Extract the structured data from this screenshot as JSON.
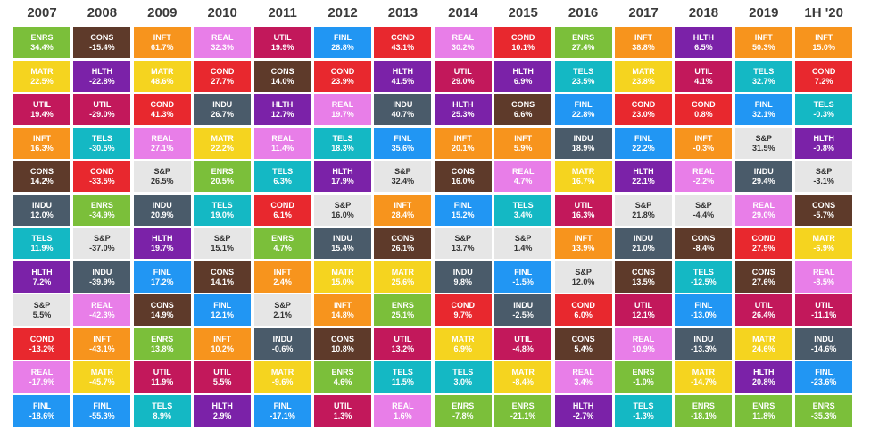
{
  "chart_data": {
    "type": "table",
    "years": [
      "2007",
      "2008",
      "2009",
      "2010",
      "2011",
      "2012",
      "2013",
      "2014",
      "2015",
      "2016",
      "2017",
      "2018",
      "2019",
      "1H '20"
    ],
    "sector_colors": {
      "ENRS": "#7bbf3a",
      "CONS": "#5e3a2a",
      "INFT": "#f7941d",
      "REAL": "#e87ee8",
      "UTIL": "#c2185b",
      "FINL": "#2196f3",
      "COND": "#e8282e",
      "MATR": "#f5d41f",
      "HLTH": "#7b22a8",
      "TELS": "#14b8c4",
      "INDU": "#4a5b6a",
      "S&P": "#e6e6e6"
    },
    "text_colors": {
      "ENRS": "#ffffff",
      "CONS": "#ffffff",
      "INFT": "#ffffff",
      "REAL": "#ffffff",
      "UTIL": "#ffffff",
      "FINL": "#ffffff",
      "COND": "#ffffff",
      "MATR": "#ffffff",
      "HLTH": "#ffffff",
      "TELS": "#ffffff",
      "INDU": "#ffffff",
      "S&P": "#333333"
    },
    "columns": [
      [
        [
          "ENRS",
          "34.4%"
        ],
        [
          "MATR",
          "22.5%"
        ],
        [
          "UTIL",
          "19.4%"
        ],
        [
          "INFT",
          "16.3%"
        ],
        [
          "CONS",
          "14.2%"
        ],
        [
          "INDU",
          "12.0%"
        ],
        [
          "TELS",
          "11.9%"
        ],
        [
          "HLTH",
          "7.2%"
        ],
        [
          "S&P",
          "5.5%"
        ],
        [
          "COND",
          "-13.2%"
        ],
        [
          "REAL",
          "-17.9%"
        ],
        [
          "FINL",
          "-18.6%"
        ]
      ],
      [
        [
          "CONS",
          "-15.4%"
        ],
        [
          "HLTH",
          "-22.8%"
        ],
        [
          "UTIL",
          "-29.0%"
        ],
        [
          "TELS",
          "-30.5%"
        ],
        [
          "COND",
          "-33.5%"
        ],
        [
          "ENRS",
          "-34.9%"
        ],
        [
          "S&P",
          "-37.0%"
        ],
        [
          "INDU",
          "-39.9%"
        ],
        [
          "REAL",
          "-42.3%"
        ],
        [
          "INFT",
          "-43.1%"
        ],
        [
          "MATR",
          "-45.7%"
        ],
        [
          "FINL",
          "-55.3%"
        ]
      ],
      [
        [
          "INFT",
          "61.7%"
        ],
        [
          "MATR",
          "48.6%"
        ],
        [
          "COND",
          "41.3%"
        ],
        [
          "REAL",
          "27.1%"
        ],
        [
          "S&P",
          "26.5%"
        ],
        [
          "INDU",
          "20.9%"
        ],
        [
          "HLTH",
          "19.7%"
        ],
        [
          "FINL",
          "17.2%"
        ],
        [
          "CONS",
          "14.9%"
        ],
        [
          "ENRS",
          "13.8%"
        ],
        [
          "UTIL",
          "11.9%"
        ],
        [
          "TELS",
          "8.9%"
        ]
      ],
      [
        [
          "REAL",
          "32.3%"
        ],
        [
          "COND",
          "27.7%"
        ],
        [
          "INDU",
          "26.7%"
        ],
        [
          "MATR",
          "22.2%"
        ],
        [
          "ENRS",
          "20.5%"
        ],
        [
          "TELS",
          "19.0%"
        ],
        [
          "S&P",
          "15.1%"
        ],
        [
          "CONS",
          "14.1%"
        ],
        [
          "FINL",
          "12.1%"
        ],
        [
          "INFT",
          "10.2%"
        ],
        [
          "UTIL",
          "5.5%"
        ],
        [
          "HLTH",
          "2.9%"
        ]
      ],
      [
        [
          "UTIL",
          "19.9%"
        ],
        [
          "CONS",
          "14.0%"
        ],
        [
          "HLTH",
          "12.7%"
        ],
        [
          "REAL",
          "11.4%"
        ],
        [
          "TELS",
          "6.3%"
        ],
        [
          "COND",
          "6.1%"
        ],
        [
          "ENRS",
          "4.7%"
        ],
        [
          "INFT",
          "2.4%"
        ],
        [
          "S&P",
          "2.1%"
        ],
        [
          "INDU",
          "-0.6%"
        ],
        [
          "MATR",
          "-9.6%"
        ],
        [
          "FINL",
          "-17.1%"
        ]
      ],
      [
        [
          "FINL",
          "28.8%"
        ],
        [
          "COND",
          "23.9%"
        ],
        [
          "REAL",
          "19.7%"
        ],
        [
          "TELS",
          "18.3%"
        ],
        [
          "HLTH",
          "17.9%"
        ],
        [
          "S&P",
          "16.0%"
        ],
        [
          "INDU",
          "15.4%"
        ],
        [
          "MATR",
          "15.0%"
        ],
        [
          "INFT",
          "14.8%"
        ],
        [
          "CONS",
          "10.8%"
        ],
        [
          "ENRS",
          "4.6%"
        ],
        [
          "UTIL",
          "1.3%"
        ]
      ],
      [
        [
          "COND",
          "43.1%"
        ],
        [
          "HLTH",
          "41.5%"
        ],
        [
          "INDU",
          "40.7%"
        ],
        [
          "FINL",
          "35.6%"
        ],
        [
          "S&P",
          "32.4%"
        ],
        [
          "INFT",
          "28.4%"
        ],
        [
          "CONS",
          "26.1%"
        ],
        [
          "MATR",
          "25.6%"
        ],
        [
          "ENRS",
          "25.1%"
        ],
        [
          "UTIL",
          "13.2%"
        ],
        [
          "TELS",
          "11.5%"
        ],
        [
          "REAL",
          "1.6%"
        ]
      ],
      [
        [
          "REAL",
          "30.2%"
        ],
        [
          "UTIL",
          "29.0%"
        ],
        [
          "HLTH",
          "25.3%"
        ],
        [
          "INFT",
          "20.1%"
        ],
        [
          "CONS",
          "16.0%"
        ],
        [
          "FINL",
          "15.2%"
        ],
        [
          "S&P",
          "13.7%"
        ],
        [
          "INDU",
          "9.8%"
        ],
        [
          "COND",
          "9.7%"
        ],
        [
          "MATR",
          "6.9%"
        ],
        [
          "TELS",
          "3.0%"
        ],
        [
          "ENRS",
          "-7.8%"
        ]
      ],
      [
        [
          "COND",
          "10.1%"
        ],
        [
          "HLTH",
          "6.9%"
        ],
        [
          "CONS",
          "6.6%"
        ],
        [
          "INFT",
          "5.9%"
        ],
        [
          "REAL",
          "4.7%"
        ],
        [
          "TELS",
          "3.4%"
        ],
        [
          "S&P",
          "1.4%"
        ],
        [
          "FINL",
          "-1.5%"
        ],
        [
          "INDU",
          "-2.5%"
        ],
        [
          "UTIL",
          "-4.8%"
        ],
        [
          "MATR",
          "-8.4%"
        ],
        [
          "ENRS",
          "-21.1%"
        ]
      ],
      [
        [
          "ENRS",
          "27.4%"
        ],
        [
          "TELS",
          "23.5%"
        ],
        [
          "FINL",
          "22.8%"
        ],
        [
          "INDU",
          "18.9%"
        ],
        [
          "MATR",
          "16.7%"
        ],
        [
          "UTIL",
          "16.3%"
        ],
        [
          "INFT",
          "13.9%"
        ],
        [
          "S&P",
          "12.0%"
        ],
        [
          "COND",
          "6.0%"
        ],
        [
          "CONS",
          "5.4%"
        ],
        [
          "REAL",
          "3.4%"
        ],
        [
          "HLTH",
          "-2.7%"
        ]
      ],
      [
        [
          "INFT",
          "38.8%"
        ],
        [
          "MATR",
          "23.8%"
        ],
        [
          "COND",
          "23.0%"
        ],
        [
          "FINL",
          "22.2%"
        ],
        [
          "HLTH",
          "22.1%"
        ],
        [
          "S&P",
          "21.8%"
        ],
        [
          "INDU",
          "21.0%"
        ],
        [
          "CONS",
          "13.5%"
        ],
        [
          "UTIL",
          "12.1%"
        ],
        [
          "REAL",
          "10.9%"
        ],
        [
          "ENRS",
          "-1.0%"
        ],
        [
          "TELS",
          "-1.3%"
        ]
      ],
      [
        [
          "HLTH",
          "6.5%"
        ],
        [
          "UTIL",
          "4.1%"
        ],
        [
          "COND",
          "0.8%"
        ],
        [
          "INFT",
          "-0.3%"
        ],
        [
          "REAL",
          "-2.2%"
        ],
        [
          "S&P",
          "-4.4%"
        ],
        [
          "CONS",
          "-8.4%"
        ],
        [
          "TELS",
          "-12.5%"
        ],
        [
          "FINL",
          "-13.0%"
        ],
        [
          "INDU",
          "-13.3%"
        ],
        [
          "MATR",
          "-14.7%"
        ],
        [
          "ENRS",
          "-18.1%"
        ]
      ],
      [
        [
          "INFT",
          "50.3%"
        ],
        [
          "TELS",
          "32.7%"
        ],
        [
          "FINL",
          "32.1%"
        ],
        [
          "S&P",
          "31.5%"
        ],
        [
          "INDU",
          "29.4%"
        ],
        [
          "REAL",
          "29.0%"
        ],
        [
          "COND",
          "27.9%"
        ],
        [
          "CONS",
          "27.6%"
        ],
        [
          "UTIL",
          "26.4%"
        ],
        [
          "MATR",
          "24.6%"
        ],
        [
          "HLTH",
          "20.8%"
        ],
        [
          "ENRS",
          "11.8%"
        ]
      ],
      [
        [
          "INFT",
          "15.0%"
        ],
        [
          "COND",
          "7.2%"
        ],
        [
          "TELS",
          "-0.3%"
        ],
        [
          "HLTH",
          "-0.8%"
        ],
        [
          "S&P",
          "-3.1%"
        ],
        [
          "CONS",
          "-5.7%"
        ],
        [
          "MATR",
          "-6.9%"
        ],
        [
          "REAL",
          "-8.5%"
        ],
        [
          "UTIL",
          "-11.1%"
        ],
        [
          "INDU",
          "-14.6%"
        ],
        [
          "FINL",
          "-23.6%"
        ],
        [
          "ENRS",
          "-35.3%"
        ]
      ]
    ]
  }
}
